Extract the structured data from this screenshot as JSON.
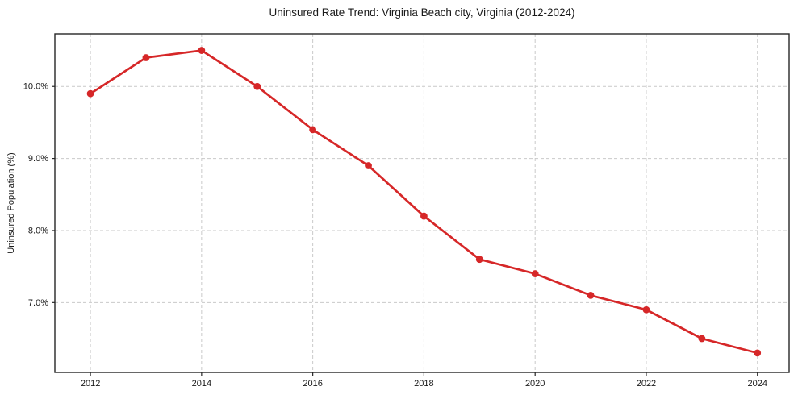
{
  "chart_data": {
    "type": "line",
    "title": "Uninsured Rate Trend: Virginia Beach city, Virginia (2012-2024)",
    "xlabel": "",
    "ylabel": "Uninsured Population (%)",
    "x": [
      2012,
      2013,
      2014,
      2015,
      2016,
      2017,
      2018,
      2019,
      2020,
      2021,
      2022,
      2023,
      2024
    ],
    "values": [
      9.9,
      10.4,
      10.5,
      10.0,
      9.4,
      8.9,
      8.2,
      7.6,
      7.4,
      7.1,
      6.9,
      6.5,
      6.3
    ],
    "xticks": {
      "values": [
        2012,
        2014,
        2016,
        2018,
        2020,
        2022,
        2024
      ],
      "labels": [
        "2012",
        "2014",
        "2016",
        "2018",
        "2020",
        "2022",
        "2024"
      ]
    },
    "yticks": {
      "values": [
        7,
        8,
        9,
        10
      ],
      "labels": [
        "7.0%",
        "8.0%",
        "9.0%",
        "10.0%"
      ]
    },
    "xlim": [
      2011.36,
      2024.57
    ],
    "ylim": [
      6.03,
      10.73
    ],
    "grid": true,
    "grid_style": "dashed",
    "legend": false,
    "line_color": "#d62728",
    "marker_color": "#d62728",
    "grid_color": "#c9c9c9",
    "spine_color": "#262626",
    "tick_label_color": "#1a1a1a",
    "background": "#ffffff"
  }
}
